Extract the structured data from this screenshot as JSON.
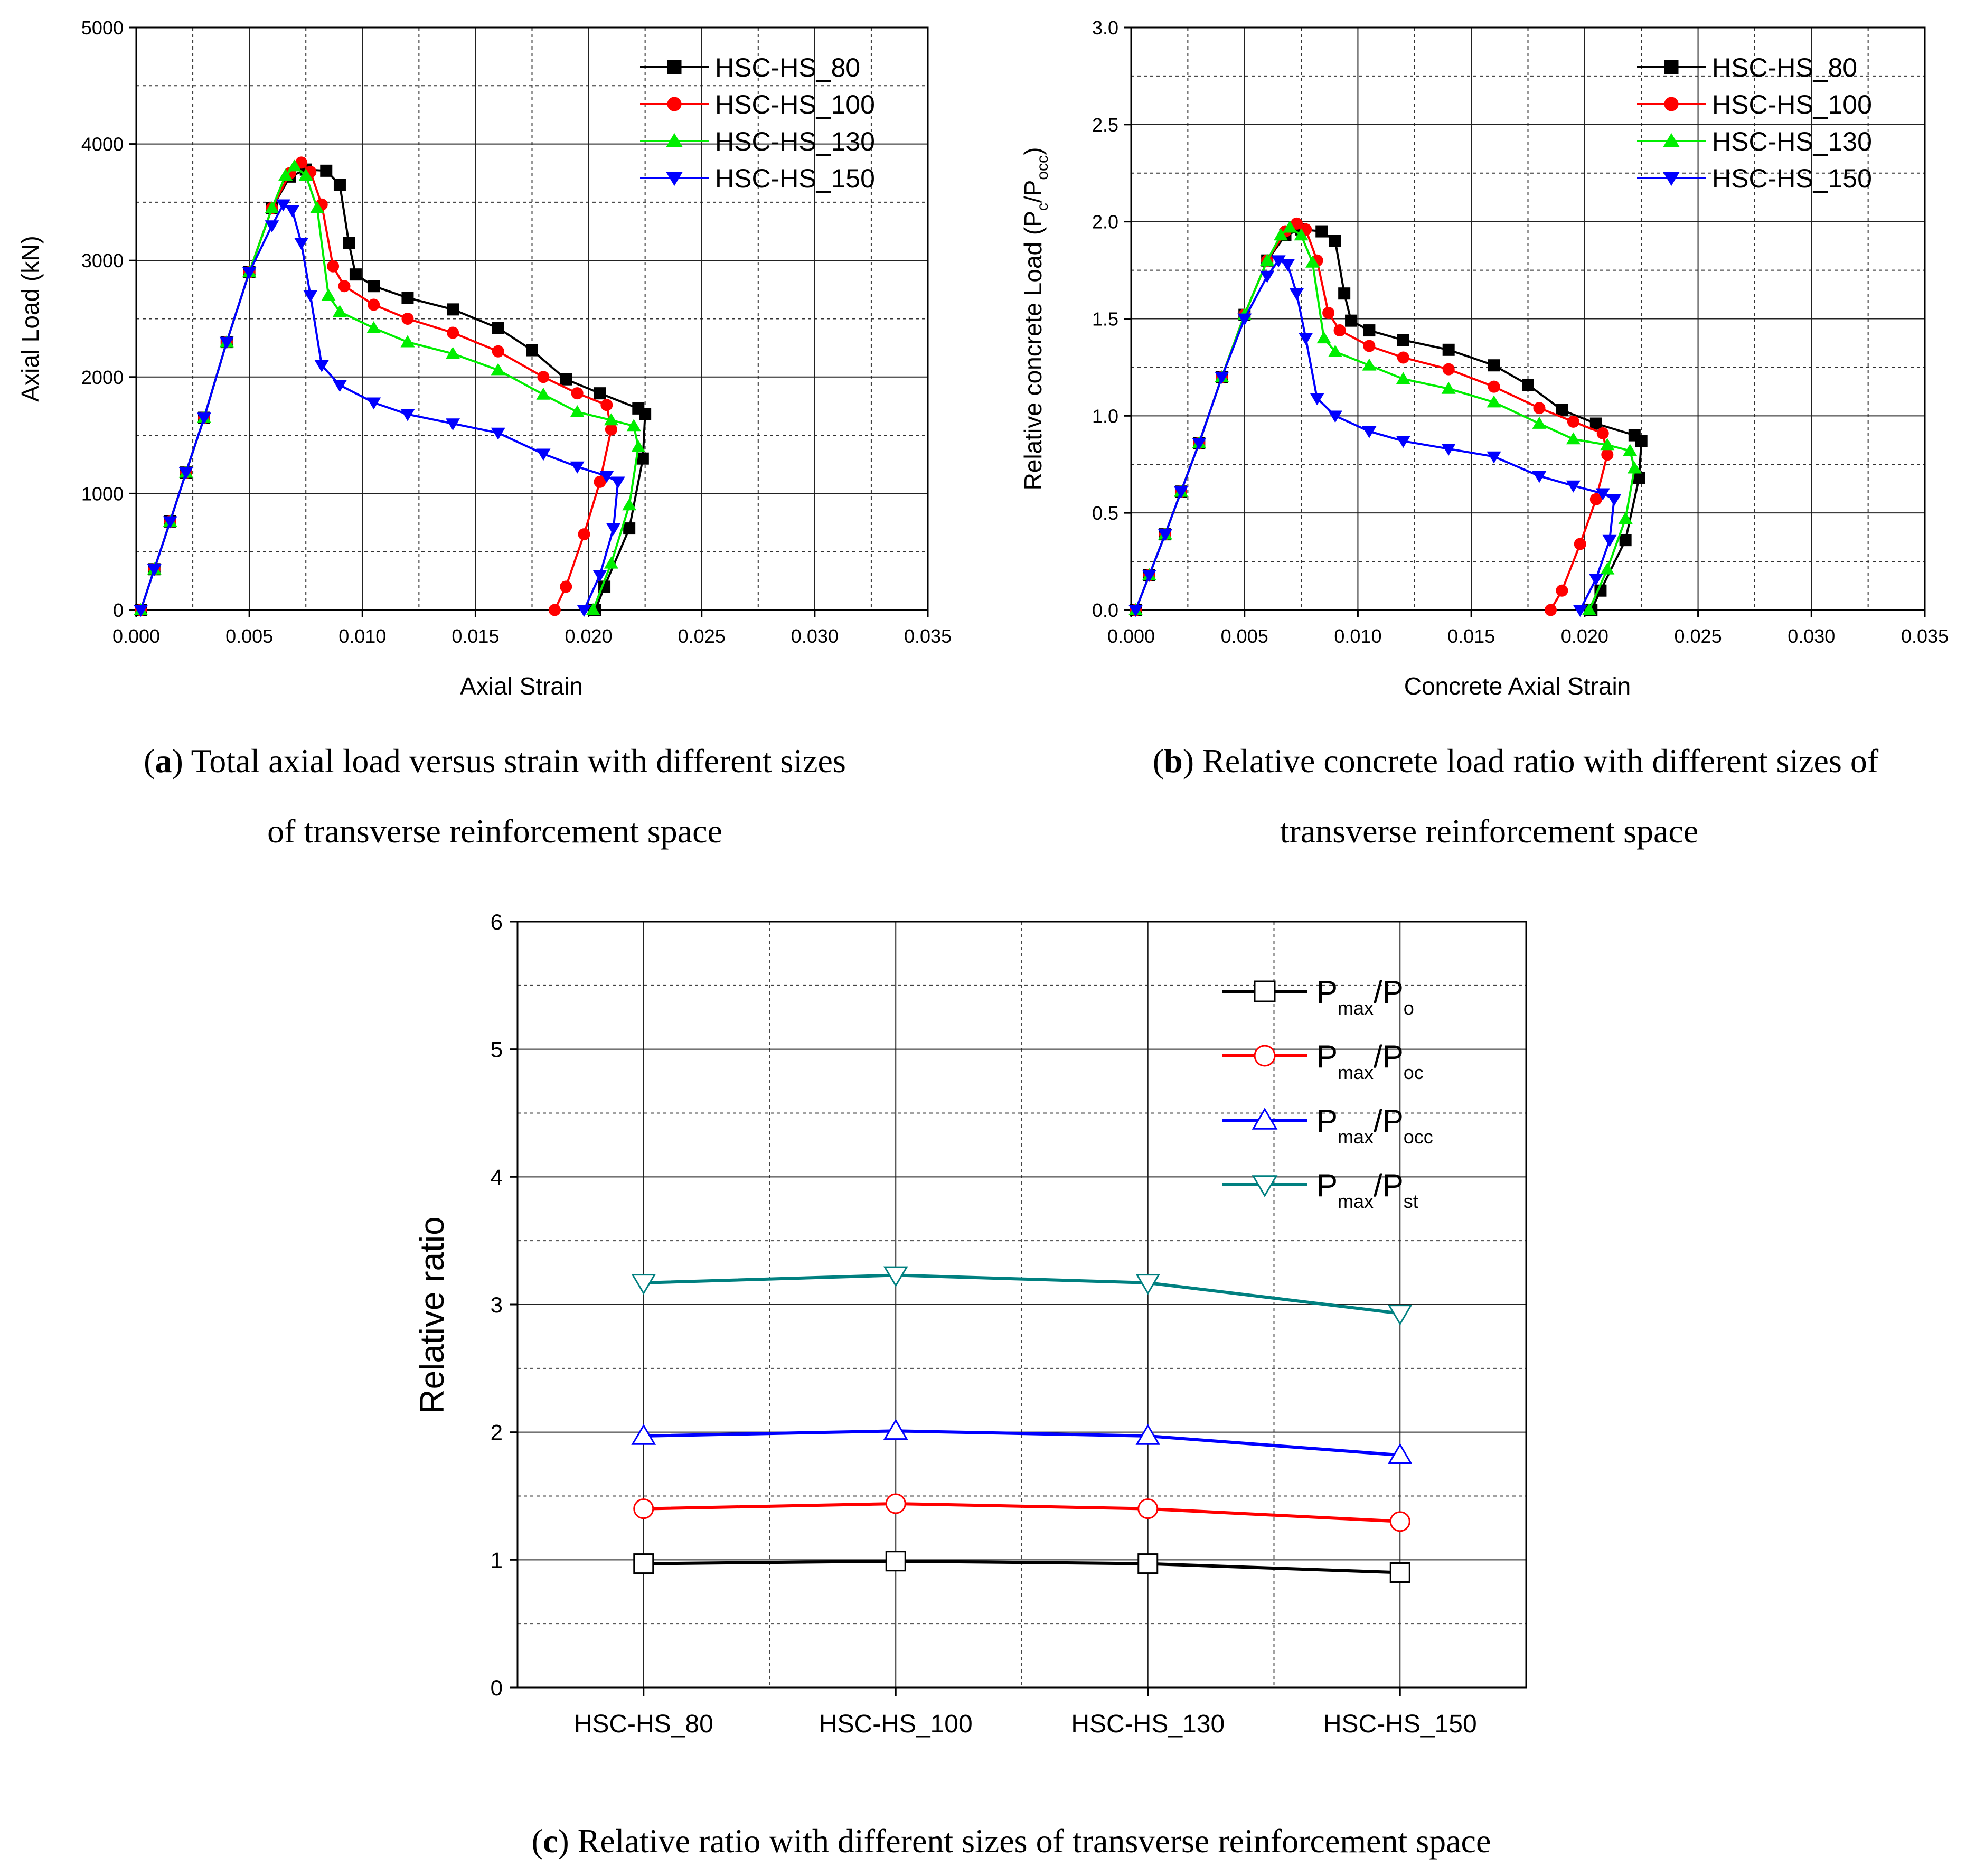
{
  "chart_data": [
    {
      "id": "a",
      "type": "line",
      "xlabel": "Axial Strain",
      "ylabel": "Axial Load (kN)",
      "xlim": [
        0,
        0.035
      ],
      "ylim": [
        0,
        5000
      ],
      "xticks": [
        "0.000",
        "0.005",
        "0.010",
        "0.015",
        "0.020",
        "0.025",
        "0.030",
        "0.035"
      ],
      "yticks": [
        "0",
        "1000",
        "2000",
        "3000",
        "4000",
        "5000"
      ],
      "legend_position": "top-right",
      "caption_letter": "a",
      "caption_line1": ") Total axial load versus strain with different sizes",
      "caption_line2": "of transverse reinforcement space",
      "series": [
        {
          "name": "HSC-HS_80",
          "color": "#000000",
          "marker": "square",
          "points": [
            [
              0.0002,
              0
            ],
            [
              0.0008,
              350
            ],
            [
              0.0015,
              760
            ],
            [
              0.0022,
              1180
            ],
            [
              0.003,
              1650
            ],
            [
              0.004,
              2300
            ],
            [
              0.005,
              2900
            ],
            [
              0.006,
              3450
            ],
            [
              0.0068,
              3720
            ],
            [
              0.0075,
              3780
            ],
            [
              0.0084,
              3770
            ],
            [
              0.009,
              3650
            ],
            [
              0.0094,
              3150
            ],
            [
              0.0097,
              2880
            ],
            [
              0.0105,
              2780
            ],
            [
              0.012,
              2680
            ],
            [
              0.014,
              2580
            ],
            [
              0.016,
              2420
            ],
            [
              0.0175,
              2230
            ],
            [
              0.019,
              1980
            ],
            [
              0.0205,
              1860
            ],
            [
              0.0222,
              1730
            ],
            [
              0.0225,
              1680
            ],
            [
              0.0224,
              1300
            ],
            [
              0.0218,
              700
            ],
            [
              0.0207,
              200
            ],
            [
              0.0203,
              0
            ]
          ]
        },
        {
          "name": "HSC-HS_100",
          "color": "#ff0000",
          "marker": "circle",
          "points": [
            [
              0.0002,
              0
            ],
            [
              0.0008,
              350
            ],
            [
              0.0015,
              760
            ],
            [
              0.0022,
              1180
            ],
            [
              0.003,
              1650
            ],
            [
              0.004,
              2300
            ],
            [
              0.005,
              2900
            ],
            [
              0.006,
              3450
            ],
            [
              0.0068,
              3750
            ],
            [
              0.0073,
              3840
            ],
            [
              0.0077,
              3760
            ],
            [
              0.0082,
              3480
            ],
            [
              0.0087,
              2950
            ],
            [
              0.0092,
              2780
            ],
            [
              0.0105,
              2620
            ],
            [
              0.012,
              2500
            ],
            [
              0.014,
              2380
            ],
            [
              0.016,
              2220
            ],
            [
              0.018,
              2000
            ],
            [
              0.0195,
              1860
            ],
            [
              0.0208,
              1760
            ],
            [
              0.021,
              1550
            ],
            [
              0.0205,
              1100
            ],
            [
              0.0198,
              650
            ],
            [
              0.019,
              200
            ],
            [
              0.0185,
              0
            ]
          ]
        },
        {
          "name": "HSC-HS_130",
          "color": "#00ee00",
          "marker": "triangle-up",
          "points": [
            [
              0.0002,
              0
            ],
            [
              0.0008,
              350
            ],
            [
              0.0015,
              760
            ],
            [
              0.0022,
              1180
            ],
            [
              0.003,
              1650
            ],
            [
              0.004,
              2300
            ],
            [
              0.005,
              2900
            ],
            [
              0.006,
              3450
            ],
            [
              0.0066,
              3730
            ],
            [
              0.007,
              3810
            ],
            [
              0.0075,
              3730
            ],
            [
              0.008,
              3450
            ],
            [
              0.0085,
              2700
            ],
            [
              0.009,
              2560
            ],
            [
              0.0105,
              2420
            ],
            [
              0.012,
              2300
            ],
            [
              0.014,
              2200
            ],
            [
              0.016,
              2060
            ],
            [
              0.018,
              1850
            ],
            [
              0.0195,
              1700
            ],
            [
              0.021,
              1630
            ],
            [
              0.022,
              1580
            ],
            [
              0.0222,
              1400
            ],
            [
              0.0218,
              900
            ],
            [
              0.021,
              400
            ],
            [
              0.0202,
              0
            ]
          ]
        },
        {
          "name": "HSC-HS_150",
          "color": "#0000ff",
          "marker": "triangle-down",
          "points": [
            [
              0.0002,
              0
            ],
            [
              0.0008,
              350
            ],
            [
              0.0015,
              760
            ],
            [
              0.0022,
              1180
            ],
            [
              0.003,
              1650
            ],
            [
              0.004,
              2300
            ],
            [
              0.005,
              2900
            ],
            [
              0.006,
              3300
            ],
            [
              0.0065,
              3480
            ],
            [
              0.0069,
              3430
            ],
            [
              0.0073,
              3150
            ],
            [
              0.0077,
              2700
            ],
            [
              0.0082,
              2100
            ],
            [
              0.009,
              1930
            ],
            [
              0.0105,
              1780
            ],
            [
              0.012,
              1680
            ],
            [
              0.014,
              1600
            ],
            [
              0.016,
              1520
            ],
            [
              0.018,
              1340
            ],
            [
              0.0195,
              1230
            ],
            [
              0.0208,
              1150
            ],
            [
              0.0213,
              1100
            ],
            [
              0.0211,
              700
            ],
            [
              0.0205,
              300
            ],
            [
              0.0198,
              0
            ]
          ]
        }
      ]
    },
    {
      "id": "b",
      "type": "line",
      "xlabel": "Concrete Axial Strain",
      "ylabel_main": "Relative concrete Load (P",
      "ylabel_sub1": "c",
      "ylabel_mid": "/P",
      "ylabel_sub2": "occ",
      "ylabel_end": ")",
      "xlim": [
        0,
        0.035
      ],
      "ylim": [
        0,
        3.0
      ],
      "xticks": [
        "0.000",
        "0.005",
        "0.010",
        "0.015",
        "0.020",
        "0.025",
        "0.030",
        "0.035"
      ],
      "yticks": [
        "0.0",
        "0.5",
        "1.0",
        "1.5",
        "2.0",
        "2.5",
        "3.0"
      ],
      "legend_position": "top-right",
      "caption_letter": "b",
      "caption_line1": ") Relative concrete load ratio with different sizes of",
      "caption_line2": "transverse reinforcement space",
      "series": [
        {
          "name": "HSC-HS_80",
          "color": "#000000",
          "marker": "square",
          "points": [
            [
              0.0002,
              0
            ],
            [
              0.0008,
              0.18
            ],
            [
              0.0015,
              0.39
            ],
            [
              0.0022,
              0.61
            ],
            [
              0.003,
              0.86
            ],
            [
              0.004,
              1.2
            ],
            [
              0.005,
              1.52
            ],
            [
              0.006,
              1.8
            ],
            [
              0.0068,
              1.93
            ],
            [
              0.0075,
              1.96
            ],
            [
              0.0084,
              1.95
            ],
            [
              0.009,
              1.9
            ],
            [
              0.0094,
              1.63
            ],
            [
              0.0097,
              1.49
            ],
            [
              0.0105,
              1.44
            ],
            [
              0.012,
              1.39
            ],
            [
              0.014,
              1.34
            ],
            [
              0.016,
              1.26
            ],
            [
              0.0175,
              1.16
            ],
            [
              0.019,
              1.03
            ],
            [
              0.0205,
              0.96
            ],
            [
              0.0222,
              0.9
            ],
            [
              0.0225,
              0.87
            ],
            [
              0.0224,
              0.68
            ],
            [
              0.0218,
              0.36
            ],
            [
              0.0207,
              0.1
            ],
            [
              0.0203,
              0
            ]
          ]
        },
        {
          "name": "HSC-HS_100",
          "color": "#ff0000",
          "marker": "circle",
          "points": [
            [
              0.0002,
              0
            ],
            [
              0.0008,
              0.18
            ],
            [
              0.0015,
              0.39
            ],
            [
              0.0022,
              0.61
            ],
            [
              0.003,
              0.86
            ],
            [
              0.004,
              1.2
            ],
            [
              0.005,
              1.52
            ],
            [
              0.006,
              1.8
            ],
            [
              0.0068,
              1.95
            ],
            [
              0.0073,
              1.99
            ],
            [
              0.0077,
              1.96
            ],
            [
              0.0082,
              1.8
            ],
            [
              0.0087,
              1.53
            ],
            [
              0.0092,
              1.44
            ],
            [
              0.0105,
              1.36
            ],
            [
              0.012,
              1.3
            ],
            [
              0.014,
              1.24
            ],
            [
              0.016,
              1.15
            ],
            [
              0.018,
              1.04
            ],
            [
              0.0195,
              0.97
            ],
            [
              0.0208,
              0.91
            ],
            [
              0.021,
              0.8
            ],
            [
              0.0205,
              0.57
            ],
            [
              0.0198,
              0.34
            ],
            [
              0.019,
              0.1
            ],
            [
              0.0185,
              0
            ]
          ]
        },
        {
          "name": "HSC-HS_130",
          "color": "#00ee00",
          "marker": "triangle-up",
          "points": [
            [
              0.0002,
              0
            ],
            [
              0.0008,
              0.18
            ],
            [
              0.0015,
              0.39
            ],
            [
              0.0022,
              0.61
            ],
            [
              0.003,
              0.86
            ],
            [
              0.004,
              1.2
            ],
            [
              0.005,
              1.52
            ],
            [
              0.006,
              1.8
            ],
            [
              0.0066,
              1.93
            ],
            [
              0.007,
              1.97
            ],
            [
              0.0075,
              1.93
            ],
            [
              0.008,
              1.79
            ],
            [
              0.0085,
              1.4
            ],
            [
              0.009,
              1.33
            ],
            [
              0.0105,
              1.26
            ],
            [
              0.012,
              1.19
            ],
            [
              0.014,
              1.14
            ],
            [
              0.016,
              1.07
            ],
            [
              0.018,
              0.96
            ],
            [
              0.0195,
              0.88
            ],
            [
              0.021,
              0.85
            ],
            [
              0.022,
              0.82
            ],
            [
              0.0222,
              0.73
            ],
            [
              0.0218,
              0.47
            ],
            [
              0.021,
              0.21
            ],
            [
              0.0202,
              0
            ]
          ]
        },
        {
          "name": "HSC-HS_150",
          "color": "#0000ff",
          "marker": "triangle-down",
          "points": [
            [
              0.0002,
              0
            ],
            [
              0.0008,
              0.18
            ],
            [
              0.0015,
              0.39
            ],
            [
              0.0022,
              0.61
            ],
            [
              0.003,
              0.86
            ],
            [
              0.004,
              1.2
            ],
            [
              0.005,
              1.5
            ],
            [
              0.006,
              1.72
            ],
            [
              0.0065,
              1.8
            ],
            [
              0.0069,
              1.78
            ],
            [
              0.0073,
              1.63
            ],
            [
              0.0077,
              1.4
            ],
            [
              0.0082,
              1.09
            ],
            [
              0.009,
              1.0
            ],
            [
              0.0105,
              0.92
            ],
            [
              0.012,
              0.87
            ],
            [
              0.014,
              0.83
            ],
            [
              0.016,
              0.79
            ],
            [
              0.018,
              0.69
            ],
            [
              0.0195,
              0.64
            ],
            [
              0.0208,
              0.6
            ],
            [
              0.0213,
              0.57
            ],
            [
              0.0211,
              0.36
            ],
            [
              0.0205,
              0.16
            ],
            [
              0.0198,
              0
            ]
          ]
        }
      ]
    },
    {
      "id": "c",
      "type": "line",
      "ylabel": "Relative ratio",
      "xlabel": "",
      "categories": [
        "HSC-HS_80",
        "HSC-HS_100",
        "HSC-HS_130",
        "HSC-HS_150"
      ],
      "ylim": [
        0,
        6
      ],
      "yticks": [
        "0",
        "1",
        "2",
        "3",
        "4",
        "5",
        "6"
      ],
      "legend_position": "top-right",
      "caption_letter": "c",
      "caption_line1": ") Relative ratio with different sizes of transverse reinforcement space",
      "series": [
        {
          "name_main": "P",
          "name_sub1": "max",
          "name_mid": "/P",
          "name_sub2": "o",
          "color": "#000000",
          "marker": "square-open",
          "values": [
            0.97,
            0.99,
            0.97,
            0.9
          ]
        },
        {
          "name_main": "P",
          "name_sub1": "max",
          "name_mid": "/P",
          "name_sub2": "oc",
          "color": "#ff0000",
          "marker": "circle-open",
          "values": [
            1.4,
            1.44,
            1.4,
            1.3
          ]
        },
        {
          "name_main": "P",
          "name_sub1": "max",
          "name_mid": "/P",
          "name_sub2": "occ",
          "color": "#0000ff",
          "marker": "triangle-up-open",
          "values": [
            1.97,
            2.01,
            1.97,
            1.82
          ]
        },
        {
          "name_main": "P",
          "name_sub1": "max",
          "name_mid": "/P",
          "name_sub2": "st",
          "color": "#008080",
          "marker": "triangle-down-open",
          "values": [
            3.17,
            3.23,
            3.17,
            2.93
          ]
        }
      ]
    }
  ]
}
